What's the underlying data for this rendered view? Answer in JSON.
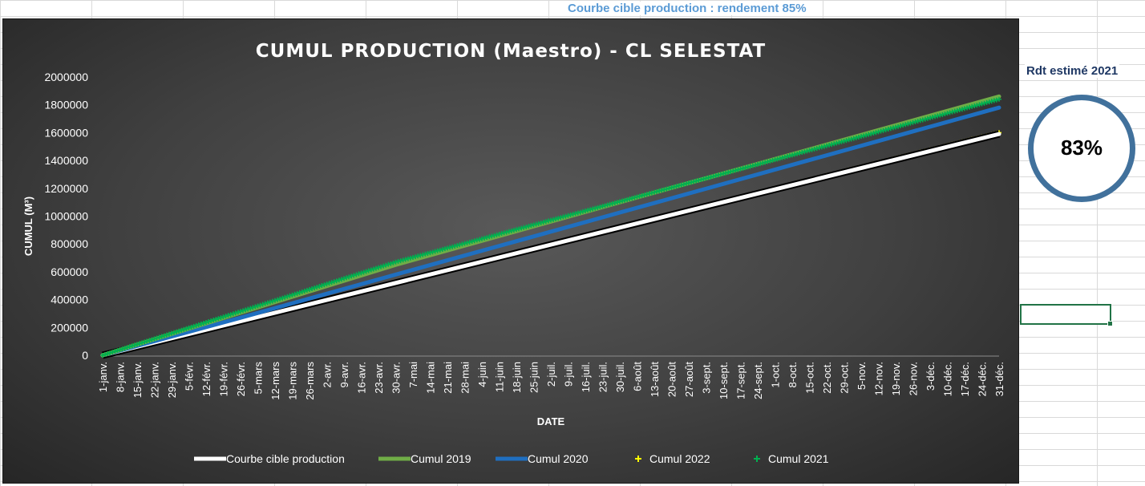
{
  "page": {
    "top_note": "Courbe cible production : rendement 85%",
    "rdt_title": "Rdt estimé 2021",
    "rdt_value": "83%"
  },
  "colors": {
    "cible": "#ffffff",
    "c2019": "#70ad47",
    "c2020": "#1f6fc0",
    "c2022": "#ffff00",
    "c2021": "#00b050",
    "ring": "#41719c",
    "note": "#5b9bd5"
  },
  "chart_data": {
    "type": "line",
    "title": "CUMUL PRODUCTION (Maestro) - CL SELESTAT",
    "xlabel": "DATE",
    "ylabel": "CUMUL (M³)",
    "ylim": [
      0,
      2000000
    ],
    "yticks": [
      0,
      200000,
      400000,
      600000,
      800000,
      1000000,
      1200000,
      1400000,
      1600000,
      1800000,
      2000000
    ],
    "x_tick_labels": [
      "1-janv.",
      "8-janv.",
      "15-janv.",
      "22-janv.",
      "29-janv.",
      "5-févr.",
      "12-févr.",
      "19-févr.",
      "26-févr.",
      "5-mars",
      "12-mars",
      "19-mars",
      "26-mars",
      "2-avr.",
      "9-avr.",
      "16-avr.",
      "23-avr.",
      "30-avr.",
      "7-mai",
      "14-mai",
      "21-mai",
      "28-mai",
      "4-juin",
      "11-juin",
      "18-juin",
      "25-juin",
      "2-juil.",
      "9-juil.",
      "16-juil.",
      "23-juil.",
      "30-juil.",
      "6-août",
      "13-août",
      "20-août",
      "27-août",
      "3-sept.",
      "10-sept.",
      "17-sept.",
      "24-sept.",
      "1-oct.",
      "8-oct.",
      "15-oct.",
      "22-oct.",
      "29-oct.",
      "5-nov.",
      "12-nov.",
      "19-nov.",
      "26-nov.",
      "3-déc.",
      "10-déc.",
      "17-déc.",
      "24-déc.",
      "31-déc."
    ],
    "x_tick_days": [
      1,
      8,
      15,
      22,
      29,
      36,
      43,
      50,
      57,
      64,
      71,
      78,
      85,
      92,
      99,
      106,
      113,
      120,
      127,
      134,
      141,
      148,
      155,
      162,
      169,
      176,
      183,
      190,
      197,
      204,
      211,
      218,
      225,
      232,
      239,
      246,
      253,
      260,
      267,
      274,
      281,
      288,
      295,
      302,
      309,
      316,
      323,
      330,
      337,
      344,
      351,
      358,
      365
    ],
    "x_range": [
      "1-janv.",
      "31-déc."
    ],
    "grid": false,
    "legend_position": "bottom",
    "series": [
      {
        "name": "Courbe cible production",
        "style": "line",
        "color": "#ffffff",
        "x": [
          "1-janv.",
          "31-déc."
        ],
        "y": [
          0,
          1590000
        ]
      },
      {
        "name": "Cumul 2019",
        "style": "line",
        "color": "#70ad47",
        "x": [
          "1-janv.",
          "30-avr.",
          "31-déc."
        ],
        "y": [
          0,
          650000,
          1860000
        ]
      },
      {
        "name": "Cumul 2020",
        "style": "line",
        "color": "#1f6fc0",
        "x": [
          "1-janv.",
          "26-févr.",
          "30-avr.",
          "31-déc."
        ],
        "y": [
          0,
          270000,
          580000,
          1780000
        ]
      },
      {
        "name": "Cumul 2022",
        "style": "marker",
        "color": "#ffff00",
        "x": [
          "1-janv.",
          "31-déc."
        ],
        "y": [
          0,
          1600000
        ]
      },
      {
        "name": "Cumul 2021",
        "style": "marker",
        "color": "#00b050",
        "x": [
          "1-janv.",
          "30-avr.",
          "31-déc."
        ],
        "y": [
          0,
          670000,
          1840000
        ]
      }
    ]
  }
}
